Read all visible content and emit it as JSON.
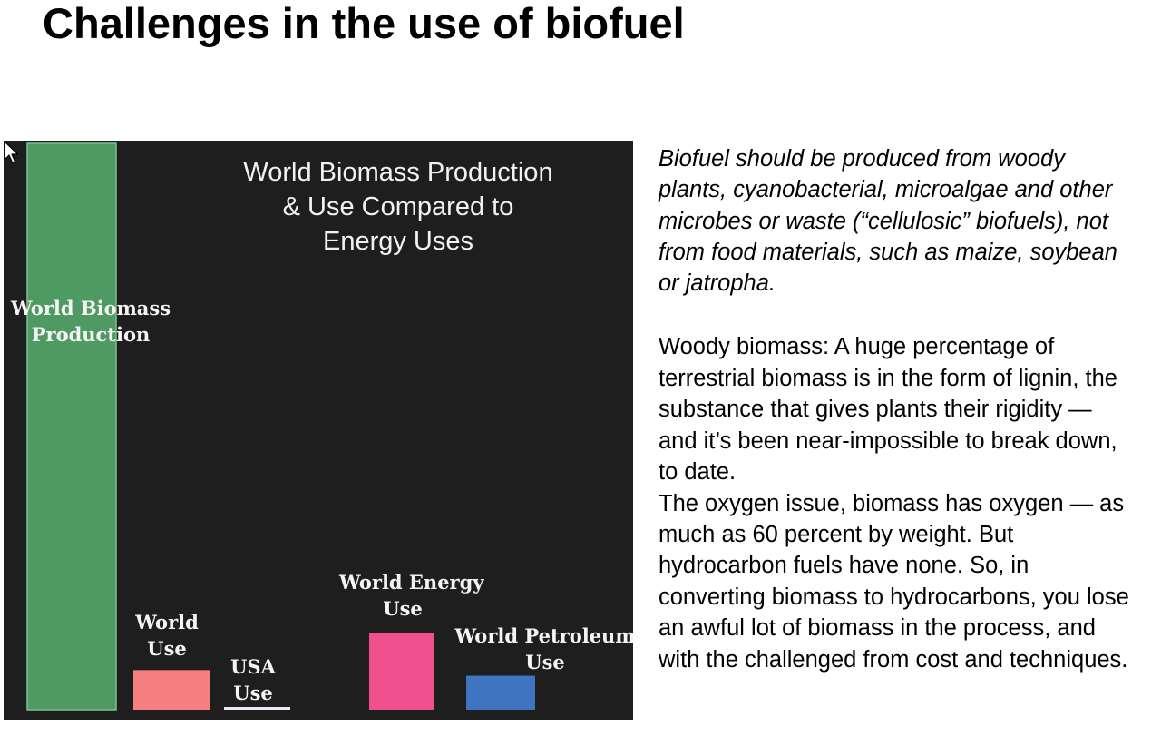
{
  "slide": {
    "title": "Challenges in the use of biofuel",
    "italic_paragraph": "Biofuel should be produced from woody plants, cyanobacterial, microalgae and other microbes or waste (“cellulosic” biofuels), not from food materials, such as maize, soybean or jatropha.",
    "body_paragraph_1": "Woody biomass: A huge percentage of terrestrial biomass is in the form of lignin, the substance that gives plants their rigidity — and it’s been near-impossible to break down, to date.",
    "body_paragraph_2": "The oxygen issue, biomass has oxygen — as much as 60 percent by weight. But hydrocarbon fuels have none. So, in converting biomass to hydrocarbons, you lose an awful lot of biomass in the process, and with the challenged from cost and techniques."
  },
  "chart_data": {
    "type": "bar",
    "title_lines": [
      "World Biomass Production",
      "& Use Compared to",
      "Energy Uses"
    ],
    "categories": [
      "World Biomass Production",
      "World Use",
      "USA Use",
      "World Energy Use",
      "World Petroleum Use"
    ],
    "category_label_lines": [
      [
        "World Biomass",
        "Production"
      ],
      [
        "World",
        "Use"
      ],
      [
        "USA",
        "Use"
      ],
      [
        "World Energy",
        "Use"
      ],
      [
        "World Petroleum",
        "Use"
      ]
    ],
    "values": [
      100,
      7,
      0.4,
      13.5,
      6
    ],
    "colors": [
      "#4f9a62",
      "#f47f7e",
      "#e8ecf8",
      "#ef4f8a",
      "#3f74c0"
    ],
    "value_units": "relative (percent of world biomass production, estimated)",
    "xlabel": "",
    "ylabel": "",
    "ylim": [
      0,
      100
    ],
    "grid": false,
    "legend": "none"
  }
}
